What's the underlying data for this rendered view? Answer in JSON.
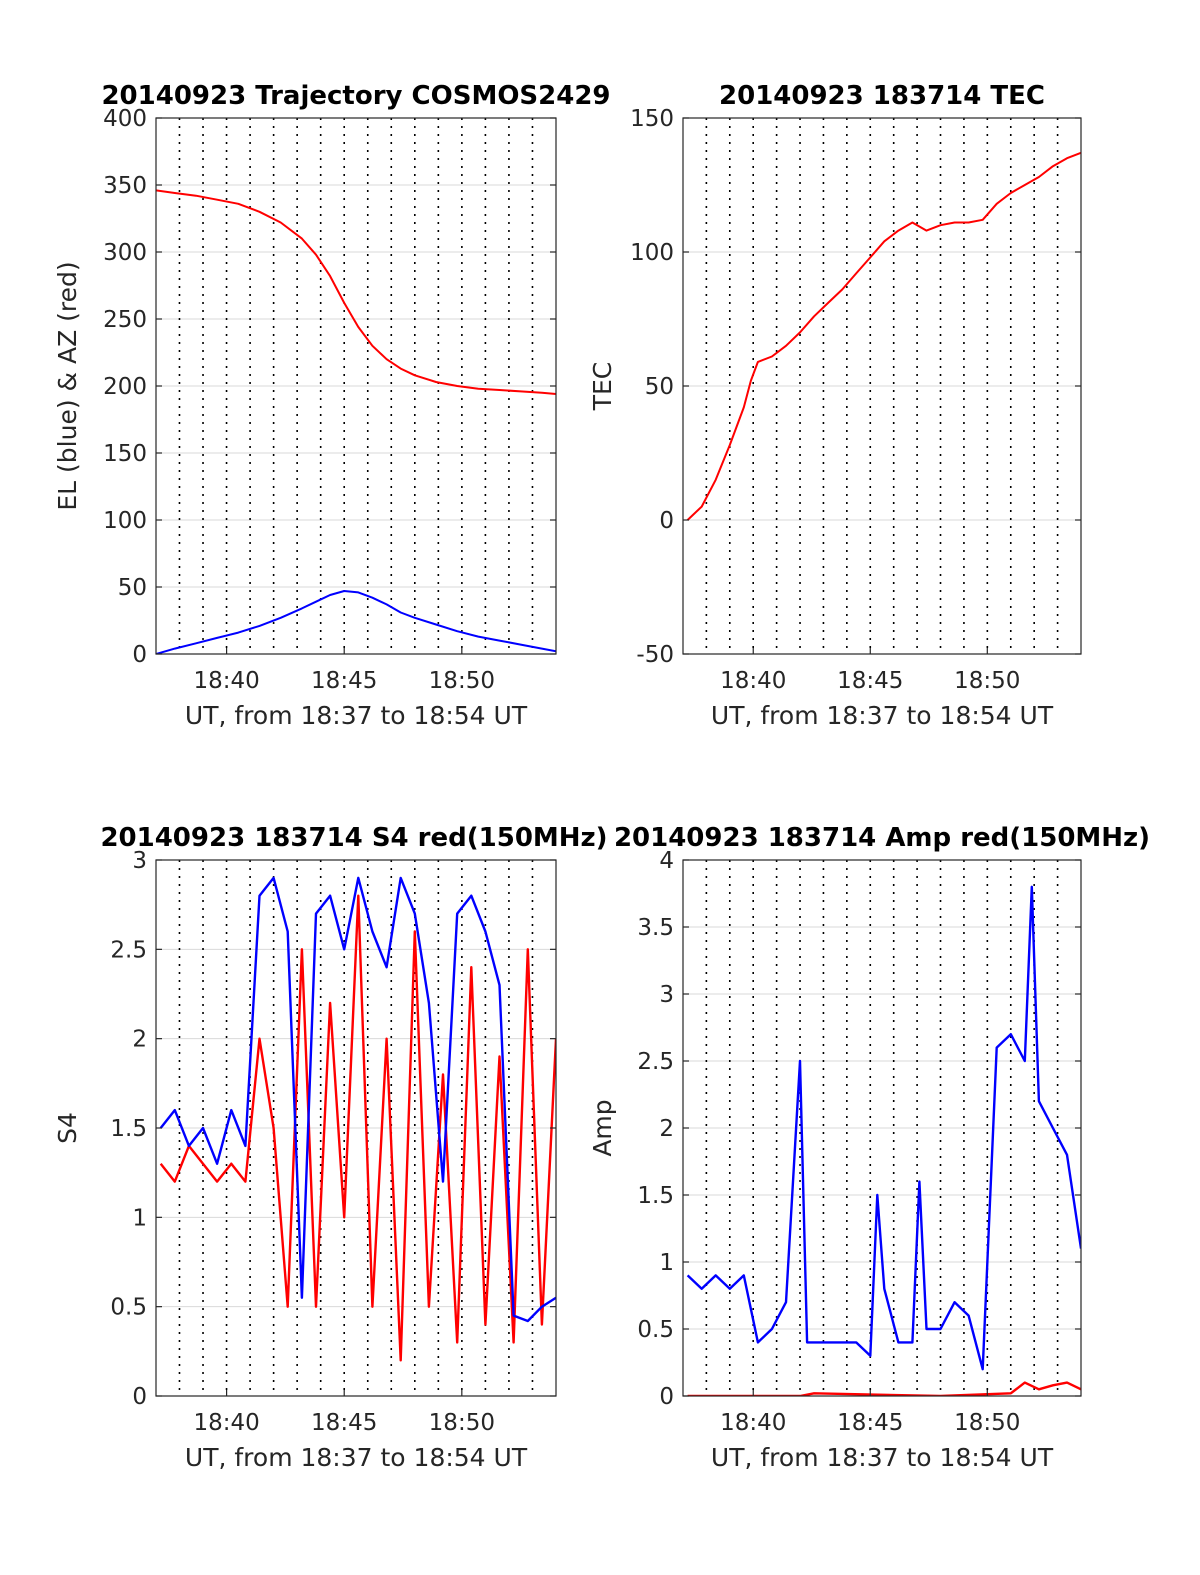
{
  "colors": {
    "red": "#ff0000",
    "blue": "#0000ff"
  },
  "chart_data": [
    {
      "type": "line",
      "title": "20140923 Trajectory COSMOS2429",
      "xlabel": "UT, from 18:37 to 18:54 UT",
      "ylabel": "EL (blue) & AZ (red)",
      "xlim": [
        18.6167,
        18.9
      ],
      "ylim": [
        0,
        400
      ],
      "yticks": [
        0,
        50,
        100,
        150,
        200,
        250,
        300,
        350,
        400
      ],
      "xticks": [
        {
          "value": 18.6667,
          "label": "18:40"
        },
        {
          "value": 18.75,
          "label": "18:45"
        },
        {
          "value": 18.8333,
          "label": "18:50"
        }
      ],
      "grid": true,
      "series": [
        {
          "color": "red",
          "x": [
            18.6167,
            18.63,
            18.645,
            18.66,
            18.675,
            18.69,
            18.705,
            18.72,
            18.73,
            18.74,
            18.75,
            18.76,
            18.77,
            18.78,
            18.79,
            18.8,
            18.815,
            18.83,
            18.845,
            18.86,
            18.875,
            18.89,
            18.9
          ],
          "y": [
            346,
            344,
            342,
            339,
            336,
            330,
            322,
            310,
            298,
            282,
            262,
            244,
            230,
            220,
            213,
            208,
            203,
            200,
            198,
            197,
            196,
            195,
            194
          ]
        },
        {
          "color": "blue",
          "x": [
            18.6167,
            18.63,
            18.645,
            18.66,
            18.675,
            18.69,
            18.705,
            18.72,
            18.73,
            18.74,
            18.75,
            18.76,
            18.77,
            18.78,
            18.79,
            18.8,
            18.815,
            18.83,
            18.845,
            18.86,
            18.875,
            18.89,
            18.9
          ],
          "y": [
            0,
            4,
            8,
            12,
            16,
            21,
            27,
            34,
            39,
            44,
            47,
            46,
            42,
            37,
            31,
            27,
            22,
            17,
            13,
            10,
            7,
            4,
            2
          ]
        }
      ]
    },
    {
      "type": "line",
      "title": "20140923 183714 TEC",
      "xlabel": "UT, from 18:37 to 18:54 UT",
      "ylabel": "TEC",
      "xlim": [
        18.6167,
        18.9
      ],
      "ylim": [
        -50,
        150
      ],
      "yticks": [
        -50,
        0,
        50,
        100,
        150
      ],
      "xticks": [
        {
          "value": 18.6667,
          "label": "18:40"
        },
        {
          "value": 18.75,
          "label": "18:45"
        },
        {
          "value": 18.8333,
          "label": "18:50"
        }
      ],
      "grid": true,
      "series": [
        {
          "color": "red",
          "x": [
            18.62,
            18.63,
            18.64,
            18.65,
            18.66,
            18.665,
            18.67,
            18.68,
            18.69,
            18.7,
            18.71,
            18.72,
            18.73,
            18.74,
            18.75,
            18.76,
            18.77,
            18.78,
            18.79,
            18.8,
            18.81,
            18.82,
            18.83,
            18.84,
            18.85,
            18.86,
            18.87,
            18.88,
            18.89,
            18.9
          ],
          "y": [
            0,
            5,
            15,
            28,
            42,
            52,
            59,
            61,
            65,
            70,
            76,
            81,
            86,
            92,
            98,
            104,
            108,
            111,
            108,
            110,
            111,
            111,
            112,
            118,
            122,
            125,
            128,
            132,
            135,
            137
          ]
        }
      ]
    },
    {
      "type": "line",
      "title": "20140923 183714 S4 red(150MHz)",
      "xlabel": "UT, from 18:37 to 18:54 UT",
      "ylabel": "S4",
      "xlim": [
        18.6167,
        18.9
      ],
      "ylim": [
        0,
        3
      ],
      "yticks": [
        0,
        0.5,
        1,
        1.5,
        2,
        2.5,
        3
      ],
      "ytick_labels": [
        "0",
        "0.5",
        "1",
        "1.5",
        "2",
        "2.5",
        "3"
      ],
      "xticks": [
        {
          "value": 18.6667,
          "label": "18:40"
        },
        {
          "value": 18.75,
          "label": "18:45"
        },
        {
          "value": 18.8333,
          "label": "18:50"
        }
      ],
      "grid": true,
      "series": [
        {
          "color": "red",
          "x": [
            18.62,
            18.63,
            18.64,
            18.65,
            18.66,
            18.67,
            18.68,
            18.69,
            18.7,
            18.71,
            18.72,
            18.73,
            18.74,
            18.75,
            18.76,
            18.77,
            18.78,
            18.79,
            18.8,
            18.81,
            18.82,
            18.83,
            18.84,
            18.85,
            18.86,
            18.87,
            18.88,
            18.89,
            18.9
          ],
          "y": [
            1.3,
            1.2,
            1.4,
            1.3,
            1.2,
            1.3,
            1.2,
            2.0,
            1.5,
            0.5,
            2.5,
            0.5,
            2.2,
            1.0,
            2.8,
            0.5,
            2.0,
            0.2,
            2.6,
            0.5,
            1.8,
            0.3,
            2.4,
            0.4,
            1.9,
            0.3,
            2.5,
            0.4,
            2.0
          ]
        },
        {
          "color": "blue",
          "x": [
            18.62,
            18.63,
            18.64,
            18.65,
            18.66,
            18.67,
            18.68,
            18.69,
            18.7,
            18.71,
            18.72,
            18.73,
            18.74,
            18.75,
            18.76,
            18.77,
            18.78,
            18.79,
            18.8,
            18.81,
            18.82,
            18.83,
            18.84,
            18.85,
            18.86,
            18.87,
            18.88,
            18.89,
            18.9
          ],
          "y": [
            1.5,
            1.6,
            1.4,
            1.5,
            1.3,
            1.6,
            1.4,
            2.8,
            2.9,
            2.6,
            0.55,
            2.7,
            2.8,
            2.5,
            2.9,
            2.6,
            2.4,
            2.9,
            2.7,
            2.2,
            1.2,
            2.7,
            2.8,
            2.6,
            2.3,
            0.45,
            0.42,
            0.5,
            0.55
          ]
        }
      ]
    },
    {
      "type": "line",
      "title": "20140923 183714 Amp red(150MHz)",
      "xlabel": "UT, from 18:37 to 18:54 UT",
      "ylabel": "Amp",
      "xlim": [
        18.6167,
        18.9
      ],
      "ylim": [
        0,
        4
      ],
      "yticks": [
        0,
        0.5,
        1,
        1.5,
        2,
        2.5,
        3,
        3.5,
        4
      ],
      "ytick_labels": [
        "0",
        "0.5",
        "1",
        "1.5",
        "2",
        "2.5",
        "3",
        "3.5",
        "4"
      ],
      "xticks": [
        {
          "value": 18.6667,
          "label": "18:40"
        },
        {
          "value": 18.75,
          "label": "18:45"
        },
        {
          "value": 18.8333,
          "label": "18:50"
        }
      ],
      "grid": true,
      "series": [
        {
          "color": "red",
          "x": [
            18.62,
            18.7,
            18.71,
            18.8,
            18.85,
            18.86,
            18.87,
            18.88,
            18.89,
            18.9
          ],
          "y": [
            0,
            0,
            0.02,
            0,
            0.02,
            0.1,
            0.05,
            0.08,
            0.1,
            0.05
          ]
        },
        {
          "color": "blue",
          "x": [
            18.62,
            18.63,
            18.64,
            18.65,
            18.66,
            18.67,
            18.68,
            18.69,
            18.7,
            18.705,
            18.71,
            18.72,
            18.73,
            18.74,
            18.75,
            18.755,
            18.76,
            18.77,
            18.78,
            18.785,
            18.79,
            18.8,
            18.81,
            18.82,
            18.83,
            18.84,
            18.85,
            18.86,
            18.865,
            18.87,
            18.88,
            18.89,
            18.9
          ],
          "y": [
            0.9,
            0.8,
            0.9,
            0.8,
            0.9,
            0.4,
            0.5,
            0.7,
            2.5,
            0.4,
            0.4,
            0.4,
            0.4,
            0.4,
            0.3,
            1.5,
            0.8,
            0.4,
            0.4,
            1.6,
            0.5,
            0.5,
            0.7,
            0.6,
            0.2,
            2.6,
            2.7,
            2.5,
            3.8,
            2.2,
            2.0,
            1.8,
            1.1
          ]
        }
      ]
    }
  ]
}
